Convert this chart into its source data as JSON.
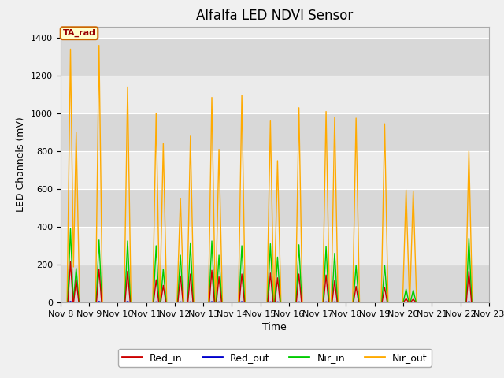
{
  "title": "Alfalfa LED NDVI Sensor",
  "xlabel": "Time",
  "ylabel": "LED Channels (mV)",
  "ylim": [
    0,
    1460
  ],
  "annotation": "TA_rad",
  "legend_labels": [
    "Red_in",
    "Red_out",
    "Nir_in",
    "Nir_out"
  ],
  "line_colors": {
    "Red_in": "#cc0000",
    "Red_out": "#0000cc",
    "Nir_in": "#00cc00",
    "Nir_out": "#ffaa00"
  },
  "x_tick_labels": [
    "Nov 8",
    "Nov 9",
    "Nov 10",
    "Nov 11",
    "Nov 12",
    "Nov 13",
    "Nov 14",
    "Nov 15",
    "Nov 16",
    "Nov 17",
    "Nov 18",
    "Nov 19",
    "Nov 20",
    "Nov 21",
    "Nov 22",
    "Nov 23"
  ],
  "background_color": "#f0f0f0",
  "plot_bg_color": "#e8e8e8",
  "band_light": "#ebebeb",
  "band_dark": "#d8d8d8",
  "title_fontsize": 12,
  "axis_label_fontsize": 9,
  "tick_fontsize": 8,
  "nir_out_peaks": [
    1340,
    900,
    1360,
    1140,
    1000,
    840,
    550,
    880,
    1085,
    810,
    1095,
    960,
    750,
    1030,
    1010,
    980,
    975,
    945,
    595,
    590,
    800
  ],
  "nir_in_peaks": [
    390,
    180,
    330,
    325,
    300,
    175,
    250,
    315,
    325,
    250,
    300,
    310,
    240,
    305,
    295,
    260,
    195,
    195,
    70,
    65,
    340
  ],
  "red_in_peaks": [
    215,
    120,
    175,
    165,
    120,
    90,
    140,
    150,
    170,
    135,
    150,
    155,
    130,
    150,
    145,
    115,
    85,
    80,
    20,
    18,
    165
  ],
  "red_out_peaks": [
    5,
    2,
    5,
    5,
    3,
    2,
    3,
    3,
    4,
    3,
    4,
    3,
    3,
    3,
    3,
    3,
    2,
    2,
    1,
    1,
    4
  ],
  "spike_positions": [
    0.35,
    0.55,
    1.35,
    2.35,
    3.35,
    3.6,
    4.2,
    4.55,
    5.3,
    5.55,
    6.35,
    7.35,
    7.6,
    8.35,
    9.3,
    9.6,
    10.35,
    11.35,
    12.1,
    12.35,
    14.3
  ]
}
